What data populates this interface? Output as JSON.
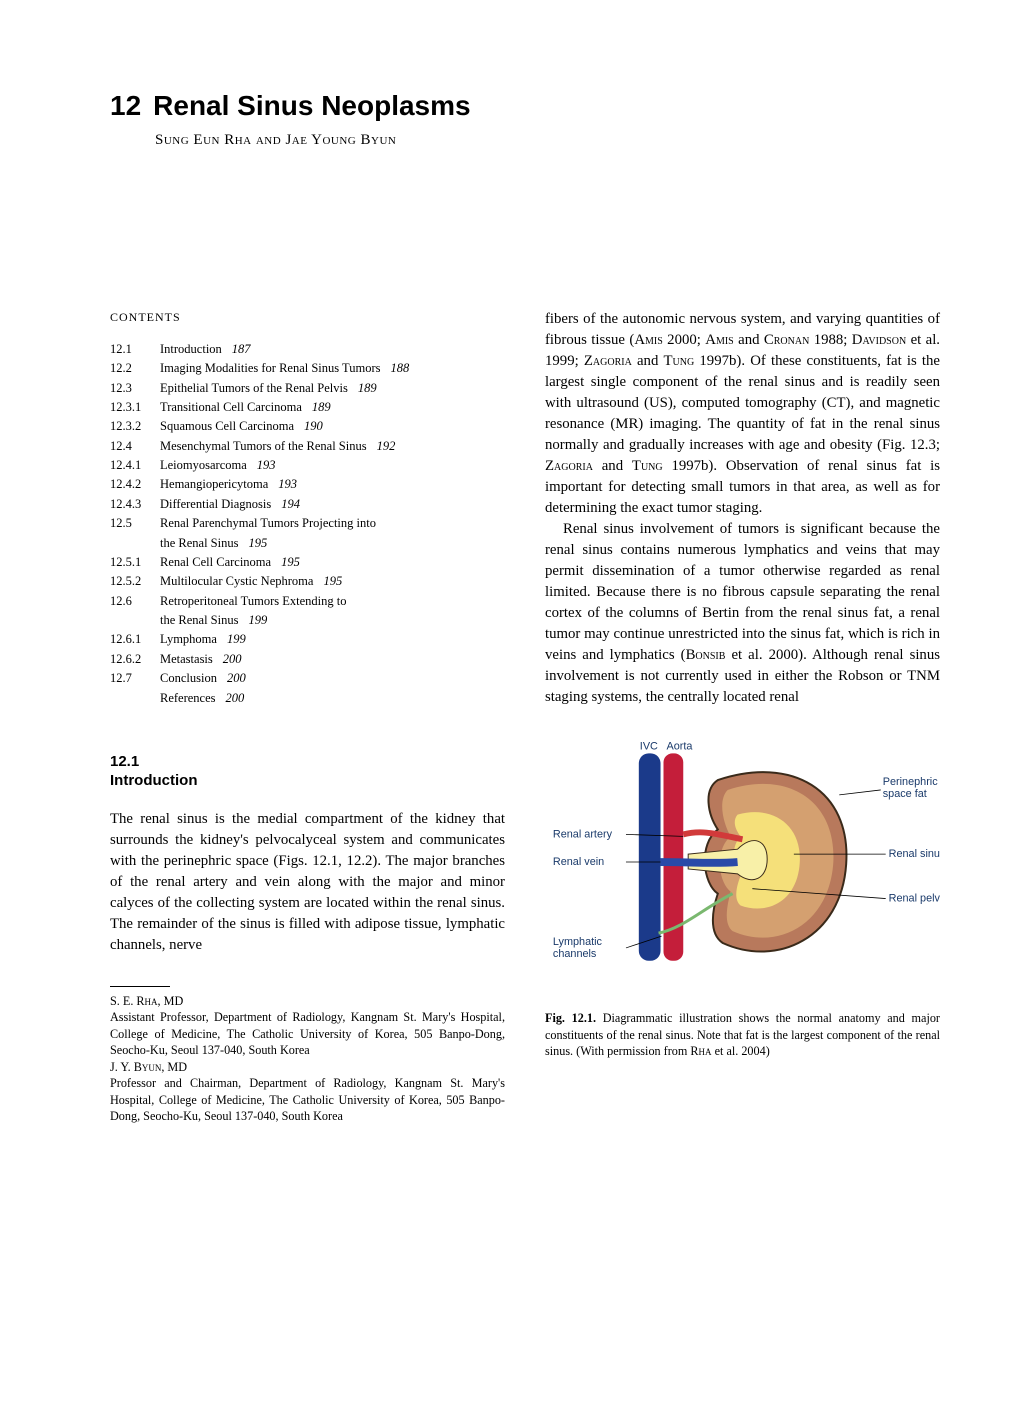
{
  "chapter": {
    "number": "12",
    "title": "Renal Sinus Neoplasms",
    "authors": "Sung Eun Rha and Jae Young Byun"
  },
  "contents_label": "CONTENTS",
  "toc": [
    {
      "num": "12.1",
      "title": "Introduction",
      "page": "187"
    },
    {
      "num": "12.2",
      "title": "Imaging Modalities for Renal Sinus Tumors",
      "page": "188"
    },
    {
      "num": "12.3",
      "title": "Epithelial Tumors of the Renal Pelvis",
      "page": "189"
    },
    {
      "num": "12.3.1",
      "title": "Transitional Cell Carcinoma",
      "page": "189"
    },
    {
      "num": "12.3.2",
      "title": "Squamous Cell Carcinoma",
      "page": "190"
    },
    {
      "num": "12.4",
      "title": "Mesenchymal Tumors of the Renal Sinus",
      "page": "192"
    },
    {
      "num": "12.4.1",
      "title": "Leiomyosarcoma",
      "page": "193"
    },
    {
      "num": "12.4.2",
      "title": "Hemangiopericytoma",
      "page": "193"
    },
    {
      "num": "12.4.3",
      "title": "Differential Diagnosis",
      "page": "194"
    },
    {
      "num": "12.5",
      "title": "Renal Parenchymal Tumors Projecting into",
      "page": "",
      "cont": "the Renal Sinus",
      "cont_page": "195"
    },
    {
      "num": "12.5.1",
      "title": "Renal Cell Carcinoma",
      "page": "195"
    },
    {
      "num": "12.5.2",
      "title": "Multilocular Cystic Nephroma",
      "page": "195"
    },
    {
      "num": "12.6",
      "title": "Retroperitoneal Tumors Extending to",
      "page": "",
      "cont": "the Renal Sinus",
      "cont_page": "199"
    },
    {
      "num": "12.6.1",
      "title": "Lymphoma",
      "page": "199"
    },
    {
      "num": "12.6.2",
      "title": "Metastasis",
      "page": "200"
    },
    {
      "num": "12.7",
      "title": "Conclusion",
      "page": "200"
    },
    {
      "num": "",
      "title": "References",
      "page": "200"
    }
  ],
  "section": {
    "num": "12.1",
    "title": "Introduction"
  },
  "intro_p1": "The renal sinus is the medial compartment of the kidney that surrounds the kidney's pelvocalyceal system and communicates with the perinephric space (Figs. 12.1, 12.2). The major branches of the renal artery and vein along with the major and minor calyces of the collecting system are located within the renal sinus. The remainder of the sinus is filled with adipose tissue, lymphatic channels, nerve",
  "col2_p1a": "fibers of the autonomic nervous system, and varying quantities of fibrous tissue (",
  "sc1": "Amis",
  "col2_p1b": " 2000; ",
  "sc2": "Amis",
  "col2_p1c": " and ",
  "sc3": "Cronan",
  "col2_p1d": " 1988; ",
  "sc4": "Davidson",
  "col2_p1e": " et al. 1999; ",
  "sc5": "Zagoria",
  "col2_p1f": " and ",
  "sc6": "Tung",
  "col2_p1g": " 1997b). Of these constituents, fat is the largest single component of the renal sinus and is readily seen with ultrasound (US), computed tomography (CT), and magnetic resonance (MR) imaging. The quantity of fat in the renal sinus normally and gradually increases with age and obesity (Fig. 12.3; ",
  "sc7": "Zagoria",
  "col2_p1h": " and ",
  "sc8": "Tung",
  "col2_p1i": " 1997b). Observation of renal sinus fat is important for detecting small tumors in that area, as well as for determining the exact tumor staging.",
  "col2_p2a": "Renal sinus involvement of tumors is significant because the renal sinus contains numerous lymphatics and veins that may permit dissemination of a tumor otherwise regarded as renal limited. Because there is no fibrous capsule separating the renal cortex of the columns of Bertin from the renal sinus fat, a renal tumor may continue unrestricted into the sinus fat, which is rich in veins and lymphatics (",
  "sc9": "Bonsib",
  "col2_p2b": " et al. 2000). Although renal sinus involvement is not currently used in either the Robson or TNM staging systems, the centrally located renal",
  "footnotes": {
    "a1_name": "S. E. Rha, MD",
    "a1_text": "Assistant Professor, Department of Radiology, Kangnam St. Mary's Hospital, College of Medicine, The Catholic University of Korea, 505 Banpo-Dong, Seocho-Ku, Seoul 137-040, South Korea",
    "a2_name": "J. Y. Byun, MD",
    "a2_text": "Professor and Chairman, Department of Radiology, Kangnam St. Mary's Hospital, College of Medicine, The Catholic University of Korea, 505 Banpo-Dong, Seocho-Ku, Seoul 137-040, South Korea"
  },
  "figure": {
    "labels": {
      "ivc": "IVC",
      "aorta": "Aorta",
      "renal_artery": "Renal artery",
      "renal_vein": "Renal vein",
      "lymphatic": "Lymphatic\nchannels",
      "perinephric": "Perinephric\nspace fat",
      "sinus_fat": "Renal sinus fat",
      "renal_pelvis": "Renal pelvis"
    },
    "colors": {
      "ivc": "#1b3a8a",
      "aorta": "#c41e3a",
      "artery": "#d13a3a",
      "vein": "#2a4aa8",
      "kidney_outer": "#b8795c",
      "kidney_inner": "#d4a070",
      "sinus_fat": "#f5e07a",
      "pelvis": "#f8f0a8",
      "lymph": "#7ab86f",
      "outline": "#3a2a1a",
      "label_text": "#1a3a6a"
    },
    "caption_label": "Fig. 12.1.",
    "caption_a": " Diagrammatic illustration shows the normal anatomy and major constituents of the renal sinus. Note that fat is the largest component of the renal sinus. (With permission from ",
    "caption_sc": "Rha",
    "caption_b": " et al. 2004)"
  }
}
